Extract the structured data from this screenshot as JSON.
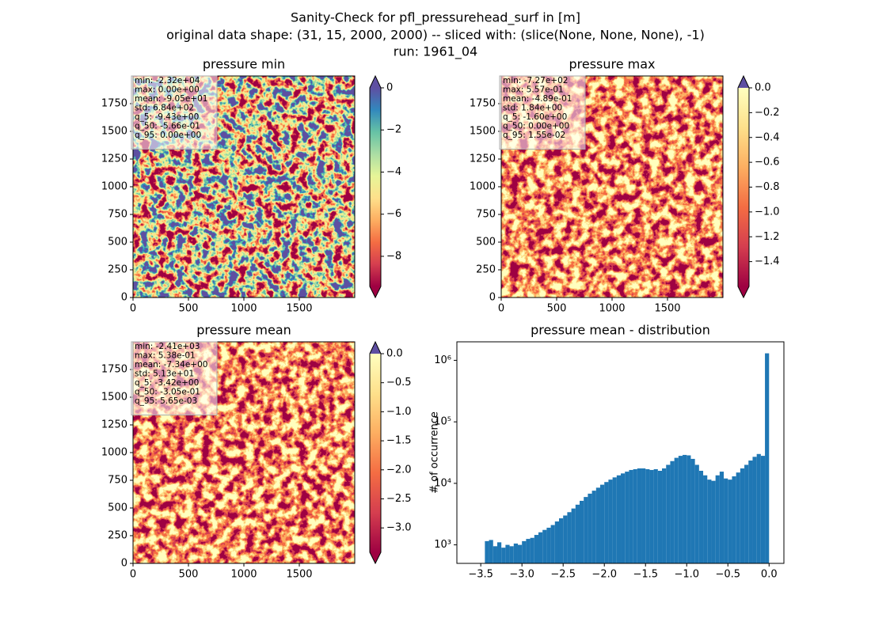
{
  "title": [
    "Sanity-Check for pfl_pressurehead_surf in [m]",
    "original data shape: (31, 15, 2000, 2000) -- sliced with: (slice(None, None, None), -1)",
    "run: 1961_04"
  ],
  "chart_data": [
    {
      "type": "heatmap",
      "title": "pressure min",
      "xlim": [
        0,
        2000
      ],
      "ylim": [
        0,
        2000
      ],
      "xticks": [
        0,
        500,
        1000,
        1500
      ],
      "yticks": [
        0,
        250,
        500,
        750,
        1000,
        1250,
        1500,
        1750
      ],
      "stats": [
        "min: -2.32e+04",
        "max: 0.00e+00",
        "mean: -9.05e+01",
        "std: 6.84e+02",
        "q_5: -9.43e+00",
        "q_50: -5.66e-01",
        "q_95: 0.00e+00"
      ],
      "colorbar": {
        "clim": [
          -9.43,
          0
        ],
        "ticks": [
          {
            "value": 0,
            "label": "0"
          },
          {
            "value": -2,
            "label": "−2"
          },
          {
            "value": -4,
            "label": "−4"
          },
          {
            "value": -6,
            "label": "−6"
          },
          {
            "value": -8,
            "label": "−8"
          }
        ],
        "colors": [
          "#9e0142",
          "#d53e4f",
          "#f46d43",
          "#fdae61",
          "#fee08b",
          "#e6f598",
          "#abdda4",
          "#66c2a5",
          "#3288bd",
          "#5e4fa2"
        ],
        "extend_colors": [
          "#9e0142",
          "#5e4fa2"
        ]
      }
    },
    {
      "type": "heatmap",
      "title": "pressure max",
      "xlim": [
        0,
        2000
      ],
      "ylim": [
        0,
        2000
      ],
      "xticks": [
        0,
        500,
        1000,
        1500
      ],
      "yticks": [
        0,
        250,
        500,
        750,
        1000,
        1250,
        1500,
        1750
      ],
      "stats": [
        "min: -7.27e+02",
        "max: 5.57e-01",
        "mean: -4.89e-01",
        "std: 1.84e+00",
        "q_5: -1.60e+00",
        "q_50: 0.00e+00",
        "q_95: 1.55e-02"
      ],
      "colorbar": {
        "clim": [
          -1.6,
          0
        ],
        "ticks": [
          {
            "value": 0,
            "label": "0.0"
          },
          {
            "value": -0.2,
            "label": "−0.2"
          },
          {
            "value": -0.4,
            "label": "−0.4"
          },
          {
            "value": -0.6,
            "label": "−0.6"
          },
          {
            "value": -0.8,
            "label": "−0.8"
          },
          {
            "value": -1.0,
            "label": "−1.0"
          },
          {
            "value": -1.2,
            "label": "−1.2"
          },
          {
            "value": -1.4,
            "label": "−1.4"
          }
        ],
        "colors": [
          "#9e0142",
          "#d53e4f",
          "#f46d43",
          "#fdae61",
          "#fee08b",
          "#ffffbf"
        ],
        "extend_colors": [
          "#9e0142",
          "#5e4fa2"
        ]
      }
    },
    {
      "type": "heatmap",
      "title": "pressure mean",
      "xlim": [
        0,
        2000
      ],
      "ylim": [
        0,
        2000
      ],
      "xticks": [
        0,
        500,
        1000,
        1500
      ],
      "yticks": [
        0,
        250,
        500,
        750,
        1000,
        1250,
        1500,
        1750
      ],
      "stats": [
        "min: -2.41e+03",
        "max: 5.38e-01",
        "mean: -7.34e+00",
        "std: 5.13e+01",
        "q_5: -3.42e+00",
        "q_50: -3.05e-01",
        "q_95: 5.65e-03"
      ],
      "colorbar": {
        "clim": [
          -3.42,
          0
        ],
        "ticks": [
          {
            "value": 0,
            "label": "0.0"
          },
          {
            "value": -0.5,
            "label": "−0.5"
          },
          {
            "value": -1.0,
            "label": "−1.0"
          },
          {
            "value": -1.5,
            "label": "−1.5"
          },
          {
            "value": -2.0,
            "label": "−2.0"
          },
          {
            "value": -2.5,
            "label": "−2.5"
          },
          {
            "value": -3.0,
            "label": "−3.0"
          }
        ],
        "colors": [
          "#9e0142",
          "#d53e4f",
          "#f46d43",
          "#fdae61",
          "#fee08b",
          "#ffffbf"
        ],
        "extend_colors": [
          "#9e0142",
          "#5e4fa2"
        ]
      }
    },
    {
      "type": "histogram",
      "title": "pressure mean - distribution",
      "ylabel": "# of occurrence",
      "yscale": "log",
      "color": "#1f77b4",
      "xlim": [
        -3.79,
        0.18
      ],
      "ylim": [
        500,
        2000000
      ],
      "xticks": [
        {
          "value": -3.5,
          "label": "−3.5"
        },
        {
          "value": -3.0,
          "label": "−3.0"
        },
        {
          "value": -2.5,
          "label": "−2.5"
        },
        {
          "value": -2.0,
          "label": "−2.0"
        },
        {
          "value": -1.5,
          "label": "−1.5"
        },
        {
          "value": -1.0,
          "label": "−1.0"
        },
        {
          "value": -0.5,
          "label": "−0.5"
        },
        {
          "value": 0,
          "label": "0.0"
        }
      ],
      "yticks": [
        {
          "value": 1000,
          "label": "10³"
        },
        {
          "value": 10000,
          "label": "10⁴"
        },
        {
          "value": 100000,
          "label": "10⁵"
        },
        {
          "value": 1000000,
          "label": "10⁶"
        }
      ],
      "bins": [
        -3.45,
        -3.4,
        -3.35,
        -3.3,
        -3.25,
        -3.2,
        -3.15,
        -3.1,
        -3.05,
        -3.0,
        -2.95,
        -2.9,
        -2.85,
        -2.8,
        -2.75,
        -2.7,
        -2.65,
        -2.6,
        -2.55,
        -2.5,
        -2.45,
        -2.4,
        -2.35,
        -2.3,
        -2.25,
        -2.2,
        -2.15,
        -2.1,
        -2.05,
        -2.0,
        -1.95,
        -1.9,
        -1.85,
        -1.8,
        -1.75,
        -1.7,
        -1.65,
        -1.6,
        -1.55,
        -1.5,
        -1.45,
        -1.4,
        -1.35,
        -1.3,
        -1.25,
        -1.2,
        -1.15,
        -1.1,
        -1.05,
        -1.0,
        -0.95,
        -0.9,
        -0.85,
        -0.8,
        -0.75,
        -0.7,
        -0.65,
        -0.6,
        -0.55,
        -0.5,
        -0.45,
        -0.4,
        -0.35,
        -0.3,
        -0.25,
        -0.2,
        -0.15,
        -0.1,
        -0.05,
        0.0
      ],
      "values": [
        1150,
        1200,
        950,
        1100,
        900,
        1000,
        950,
        1050,
        1000,
        1150,
        1250,
        1300,
        1450,
        1600,
        1750,
        1900,
        2100,
        2400,
        2700,
        3000,
        3400,
        3900,
        4500,
        5200,
        6000,
        6800,
        7600,
        8500,
        9500,
        10500,
        11500,
        12500,
        13500,
        14500,
        15500,
        16500,
        17000,
        17500,
        17500,
        17000,
        16500,
        17000,
        16000,
        17500,
        20000,
        23000,
        26000,
        28000,
        29000,
        28500,
        25000,
        20000,
        16000,
        13500,
        11500,
        11000,
        13500,
        15500,
        12000,
        11500,
        13000,
        15000,
        17500,
        20000,
        23500,
        27000,
        30000,
        28000,
        1300000
      ]
    }
  ]
}
